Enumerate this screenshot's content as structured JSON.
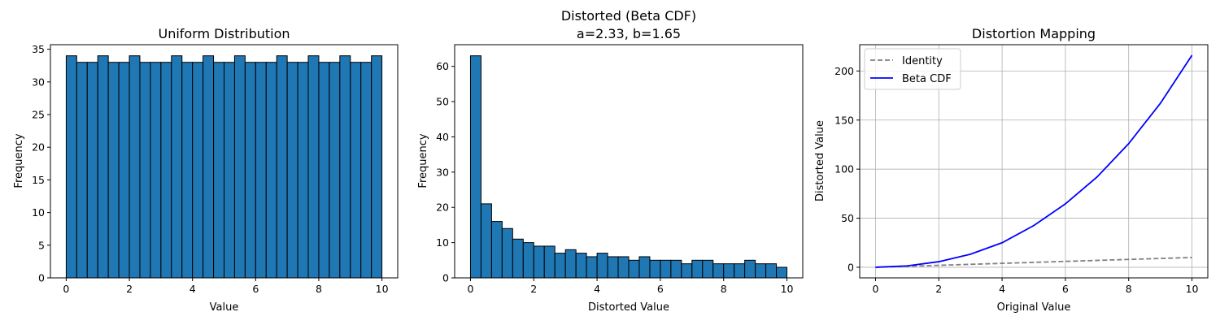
{
  "chart_data": [
    {
      "type": "bar",
      "title": "Uniform Distribution",
      "xlabel": "Value",
      "ylabel": "Frequency",
      "xlim": [
        -0.5,
        10.5
      ],
      "ylim": [
        0,
        35.7
      ],
      "xticks": [
        0,
        2,
        4,
        6,
        8,
        10
      ],
      "yticks": [
        0,
        5,
        10,
        15,
        20,
        25,
        30,
        35
      ],
      "bin_edges_range": [
        0,
        10
      ],
      "values": [
        34,
        33,
        33,
        34,
        33,
        33,
        34,
        33,
        33,
        33,
        34,
        33,
        33,
        34,
        33,
        33,
        34,
        33,
        33,
        33,
        34,
        33,
        33,
        34,
        33,
        33,
        34,
        33,
        33,
        34
      ],
      "bar_color": "#1f77b4",
      "edge_color": "#000000",
      "grid": false
    },
    {
      "type": "bar",
      "title": "Distorted (Beta CDF)",
      "subtitle": "a=2.33, b=1.65",
      "xlabel": "Distorted Value",
      "ylabel": "Frequency",
      "xlim": [
        -0.5,
        10.5
      ],
      "ylim": [
        0,
        66.15
      ],
      "xticks": [
        0,
        2,
        4,
        6,
        8,
        10
      ],
      "yticks": [
        0,
        10,
        20,
        30,
        40,
        50,
        60
      ],
      "bin_edges_range": [
        0,
        10
      ],
      "values": [
        63,
        21,
        16,
        14,
        11,
        10,
        9,
        9,
        7,
        8,
        7,
        6,
        7,
        6,
        6,
        5,
        6,
        5,
        5,
        5,
        4,
        5,
        5,
        4,
        4,
        4,
        5,
        4,
        4,
        3
      ],
      "bar_color": "#1f77b4",
      "edge_color": "#000000",
      "grid": false
    },
    {
      "type": "line",
      "title": "Distortion Mapping",
      "xlabel": "Original Value",
      "ylabel": "Distorted Value",
      "xlim": [
        -0.5,
        10.5
      ],
      "ylim": [
        -10.8,
        226.8
      ],
      "xticks": [
        0,
        2,
        4,
        6,
        8,
        10
      ],
      "yticks": [
        0,
        50,
        100,
        150,
        200
      ],
      "grid": true,
      "legend_position": "top-left",
      "series": [
        {
          "name": "Identity",
          "color": "#808080",
          "style": "dashed",
          "x": [
            0,
            10
          ],
          "y": [
            0,
            10
          ]
        },
        {
          "name": "Beta CDF",
          "color": "#0000ff",
          "style": "solid",
          "x": [
            0,
            1,
            2,
            3,
            4,
            5,
            6,
            7,
            8,
            9,
            10
          ],
          "y": [
            0,
            1.4,
            5.7,
            13.3,
            25,
            42.5,
            64.6,
            92,
            126,
            167,
            216
          ]
        }
      ]
    }
  ]
}
